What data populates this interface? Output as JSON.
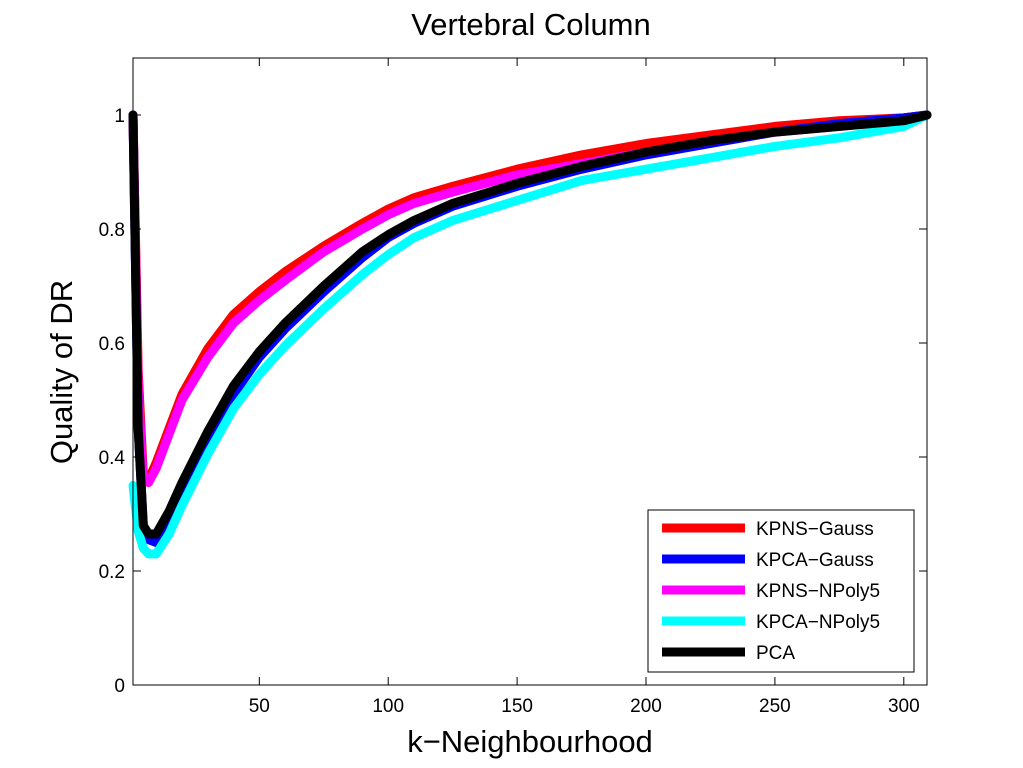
{
  "chart_data": {
    "type": "line",
    "title": "Vertebral Column",
    "xlabel": "k−Neighbourhood",
    "ylabel": "Quality of DR",
    "xlim": [
      1,
      309
    ],
    "ylim": [
      0,
      1.1
    ],
    "xticks": [
      50,
      100,
      150,
      200,
      250,
      300
    ],
    "yticks": [
      0,
      0.2,
      0.4,
      0.6,
      0.8,
      1
    ],
    "xtick_labels": [
      "50",
      "100",
      "150",
      "200",
      "250",
      "300"
    ],
    "ytick_labels": [
      "0",
      "0.2",
      "0.4",
      "0.6",
      "0.8",
      "1"
    ],
    "grid": false,
    "legend_position": "bottom-right",
    "x": [
      1,
      3,
      5,
      7,
      10,
      15,
      20,
      30,
      40,
      50,
      60,
      75,
      90,
      100,
      110,
      125,
      150,
      175,
      200,
      225,
      250,
      275,
      300,
      309
    ],
    "series": [
      {
        "name": "KPNS−Gauss",
        "color": "#ff0000",
        "values": [
          1.0,
          0.55,
          0.37,
          0.36,
          0.39,
          0.45,
          0.51,
          0.59,
          0.65,
          0.69,
          0.725,
          0.77,
          0.81,
          0.835,
          0.855,
          0.875,
          0.905,
          0.93,
          0.95,
          0.965,
          0.98,
          0.99,
          0.995,
          1.0
        ]
      },
      {
        "name": "KPCA−Gauss",
        "color": "#0000ff",
        "values": [
          1.0,
          0.45,
          0.28,
          0.255,
          0.25,
          0.29,
          0.34,
          0.43,
          0.51,
          0.575,
          0.625,
          0.69,
          0.75,
          0.785,
          0.81,
          0.84,
          0.875,
          0.905,
          0.93,
          0.95,
          0.97,
          0.985,
          0.995,
          1.0
        ]
      },
      {
        "name": "KPNS−NPoly5",
        "color": "#ff00ff",
        "values": [
          1.0,
          0.52,
          0.36,
          0.355,
          0.38,
          0.44,
          0.5,
          0.575,
          0.635,
          0.675,
          0.71,
          0.76,
          0.8,
          0.825,
          0.845,
          0.865,
          0.895,
          0.915,
          0.935,
          0.955,
          0.97,
          0.98,
          0.99,
          1.0
        ]
      },
      {
        "name": "KPCA−NPoly5",
        "color": "#00ffff",
        "values": [
          0.35,
          0.27,
          0.24,
          0.23,
          0.23,
          0.265,
          0.315,
          0.405,
          0.485,
          0.545,
          0.595,
          0.66,
          0.72,
          0.755,
          0.785,
          0.815,
          0.85,
          0.885,
          0.905,
          0.925,
          0.945,
          0.96,
          0.98,
          1.0
        ]
      },
      {
        "name": "PCA",
        "color": "#000000",
        "values": [
          1.0,
          0.45,
          0.28,
          0.265,
          0.265,
          0.305,
          0.355,
          0.445,
          0.525,
          0.585,
          0.635,
          0.7,
          0.76,
          0.79,
          0.815,
          0.845,
          0.88,
          0.91,
          0.935,
          0.955,
          0.97,
          0.98,
          0.99,
          1.0
        ]
      }
    ]
  }
}
